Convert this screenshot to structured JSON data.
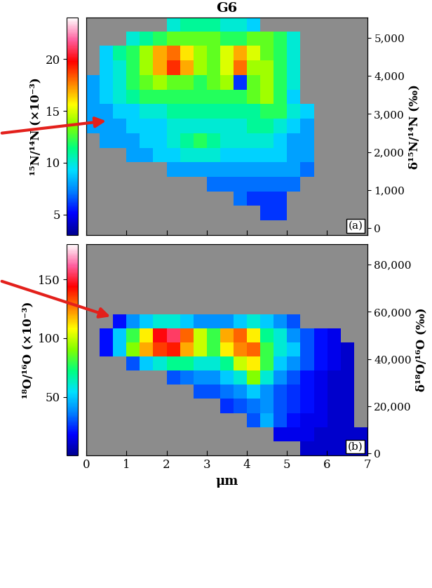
{
  "chart_data": [
    {
      "type": "heatmap",
      "title": "G6",
      "panel_label": "(a)",
      "xlim": [
        0,
        7
      ],
      "xticks": [
        0,
        1,
        2,
        3,
        4,
        5,
        6,
        7
      ],
      "ylim": [
        0,
        5
      ],
      "tick_labels": "y",
      "colorbar": {
        "label": "¹⁵N/¹⁴N (×10⁻³)",
        "range": [
          3,
          24
        ],
        "ticks": [
          5,
          10,
          15,
          20
        ]
      },
      "y2_label": "δ¹⁵N/¹⁴N (‰)",
      "y2lim": [
        -184,
        5528
      ],
      "y2ticks": [
        0,
        {
          "value": 1000,
          "label": "1,000"
        },
        {
          "value": 2000,
          "label": "2,000"
        },
        {
          "value": 3000,
          "label": "3,000"
        },
        {
          "value": 4000,
          "label": "4,000"
        },
        {
          "value": 5000,
          "label": "5,000"
        }
      ],
      "cells": [
        [
          null,
          null,
          null,
          null,
          null,
          null,
          10,
          11,
          11,
          11,
          10,
          10,
          9,
          null,
          null,
          null,
          null,
          null,
          null,
          null,
          null
        ],
        [
          null,
          null,
          null,
          10,
          11,
          12,
          13,
          13,
          13,
          13,
          12,
          12,
          13,
          13,
          12,
          10,
          null,
          null,
          null,
          null,
          null
        ],
        [
          null,
          9,
          11,
          12,
          14,
          17,
          18,
          16,
          14,
          13,
          15,
          17,
          15,
          13,
          12,
          10,
          null,
          null,
          null,
          null,
          null
        ],
        [
          null,
          9,
          10,
          12,
          14,
          17,
          19,
          17,
          14,
          13,
          15,
          18,
          14,
          14,
          12,
          10,
          null,
          null,
          null,
          null,
          null
        ],
        [
          8,
          9,
          10,
          12,
          13,
          14,
          13,
          13,
          12,
          13,
          14,
          6,
          13,
          14,
          12,
          10,
          null,
          null,
          null,
          null,
          null
        ],
        [
          8,
          9,
          10,
          11,
          12,
          12,
          12,
          12,
          12,
          12,
          12,
          12,
          13,
          14,
          12,
          9,
          null,
          null,
          null,
          null,
          null
        ],
        [
          8,
          8,
          9,
          9,
          10,
          10,
          11,
          11,
          11,
          11,
          11,
          11,
          11,
          12,
          12,
          10,
          9,
          null,
          null,
          null,
          null
        ],
        [
          8,
          8,
          8,
          9,
          9,
          9,
          10,
          10,
          10,
          10,
          10,
          10,
          11,
          11,
          10,
          9,
          8,
          null,
          null,
          null,
          null
        ],
        [
          null,
          8,
          8,
          8,
          9,
          9,
          10,
          11,
          12,
          11,
          10,
          10,
          10,
          10,
          9,
          8,
          8,
          null,
          null,
          null,
          null
        ],
        [
          null,
          null,
          null,
          8,
          8,
          9,
          9,
          10,
          10,
          10,
          9,
          9,
          9,
          9,
          9,
          8,
          8,
          null,
          null,
          null,
          null
        ],
        [
          null,
          null,
          null,
          null,
          null,
          null,
          8,
          8,
          8,
          8,
          8,
          8,
          8,
          8,
          8,
          8,
          7,
          null,
          null,
          null,
          null
        ],
        [
          null,
          null,
          null,
          null,
          null,
          null,
          null,
          null,
          null,
          7,
          7,
          7,
          7,
          7,
          7,
          7,
          null,
          null,
          null,
          null,
          null
        ],
        [
          null,
          null,
          null,
          null,
          null,
          null,
          null,
          null,
          null,
          null,
          null,
          7,
          6,
          6,
          6,
          null,
          null,
          null,
          null,
          null,
          null
        ],
        [
          null,
          null,
          null,
          null,
          null,
          null,
          null,
          null,
          null,
          null,
          null,
          null,
          null,
          6,
          6,
          null,
          null,
          null,
          null,
          null,
          null
        ],
        [
          null,
          null,
          null,
          null,
          null,
          null,
          null,
          null,
          null,
          null,
          null,
          null,
          null,
          null,
          null,
          null,
          null,
          null,
          null,
          null,
          null
        ]
      ]
    },
    {
      "type": "heatmap",
      "panel_label": "(b)",
      "x_label": "μm",
      "xlim": [
        0,
        7
      ],
      "xticks": [
        0,
        1,
        2,
        3,
        4,
        5,
        6,
        7
      ],
      "ylim": [
        0,
        5
      ],
      "colorbar": {
        "label": "¹⁸O/¹⁶O (×10⁻³)",
        "range": [
          0,
          180
        ],
        "ticks": [
          50,
          100,
          150
        ]
      },
      "y2_label": "δ¹⁸O/¹⁶O (‰)",
      "y2lim": [
        -1000,
        88766
      ],
      "y2ticks": [
        0,
        {
          "value": 20000,
          "label": "20,000"
        },
        {
          "value": 40000,
          "label": "40,000"
        },
        {
          "value": 60000,
          "label": "60,000"
        },
        {
          "value": 80000,
          "label": "80,000"
        }
      ],
      "cells": [
        [
          null,
          null,
          null,
          null,
          null,
          null,
          null,
          null,
          null,
          null,
          null,
          null,
          null,
          null,
          null,
          null,
          null,
          null,
          null,
          null,
          null
        ],
        [
          null,
          null,
          null,
          null,
          null,
          null,
          null,
          null,
          null,
          null,
          null,
          null,
          null,
          null,
          null,
          null,
          null,
          null,
          null,
          null,
          null
        ],
        [
          null,
          null,
          null,
          null,
          null,
          null,
          null,
          null,
          null,
          null,
          null,
          null,
          null,
          null,
          null,
          null,
          null,
          null,
          null,
          null,
          null
        ],
        [
          null,
          null,
          null,
          null,
          null,
          null,
          null,
          null,
          null,
          null,
          null,
          null,
          null,
          null,
          null,
          null,
          null,
          null,
          null,
          null,
          null
        ],
        [
          null,
          null,
          null,
          null,
          null,
          null,
          null,
          null,
          null,
          null,
          null,
          null,
          null,
          null,
          null,
          null,
          null,
          null,
          null,
          null,
          null
        ],
        [
          null,
          null,
          20,
          40,
          50,
          60,
          60,
          50,
          40,
          40,
          40,
          50,
          60,
          50,
          40,
          30,
          null,
          null,
          null,
          null,
          null
        ],
        [
          null,
          20,
          50,
          80,
          110,
          145,
          155,
          130,
          100,
          80,
          120,
          130,
          110,
          70,
          60,
          40,
          30,
          20,
          15,
          null,
          null
        ],
        [
          null,
          20,
          50,
          90,
          120,
          135,
          140,
          120,
          100,
          80,
          110,
          125,
          130,
          80,
          60,
          50,
          30,
          20,
          15,
          10,
          null
        ],
        [
          null,
          null,
          null,
          30,
          50,
          60,
          70,
          70,
          60,
          60,
          70,
          100,
          110,
          80,
          50,
          40,
          30,
          20,
          15,
          10,
          null
        ],
        [
          null,
          null,
          null,
          null,
          null,
          null,
          30,
          35,
          40,
          40,
          50,
          60,
          90,
          60,
          40,
          30,
          20,
          15,
          10,
          10,
          null
        ],
        [
          null,
          null,
          null,
          null,
          null,
          null,
          null,
          null,
          30,
          30,
          35,
          40,
          50,
          40,
          30,
          25,
          20,
          15,
          10,
          10,
          null
        ],
        [
          null,
          null,
          null,
          null,
          null,
          null,
          null,
          null,
          null,
          null,
          25,
          30,
          35,
          40,
          30,
          25,
          20,
          15,
          10,
          10,
          null
        ],
        [
          null,
          null,
          null,
          null,
          null,
          null,
          null,
          null,
          null,
          null,
          null,
          null,
          30,
          45,
          30,
          20,
          15,
          15,
          10,
          10,
          null
        ],
        [
          null,
          null,
          null,
          null,
          null,
          null,
          null,
          null,
          null,
          null,
          null,
          null,
          null,
          null,
          15,
          15,
          15,
          10,
          10,
          10,
          10
        ],
        [
          null,
          null,
          null,
          null,
          null,
          null,
          null,
          null,
          null,
          null,
          null,
          null,
          null,
          null,
          null,
          null,
          10,
          10,
          10,
          10,
          10
        ]
      ]
    }
  ]
}
